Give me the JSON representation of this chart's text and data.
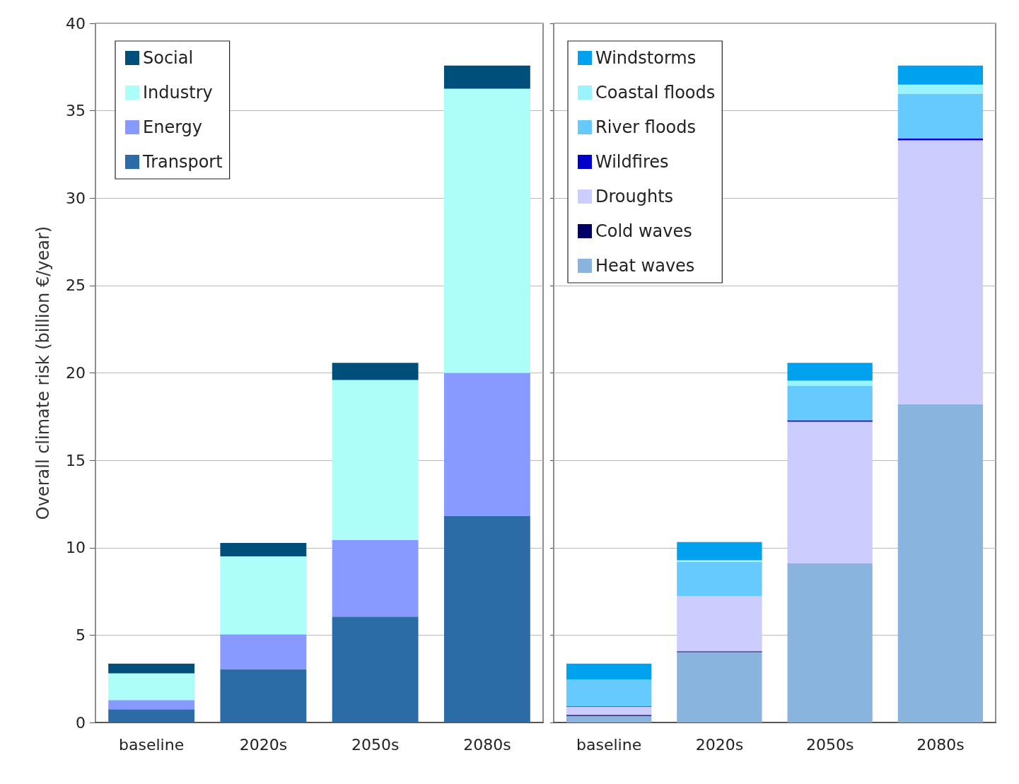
{
  "chart_data": [
    {
      "type": "bar",
      "stacked": true,
      "ylabel": "Overall climate risk (billion €/year)",
      "categories": [
        "baseline",
        "2020s",
        "2050s",
        "2080s"
      ],
      "ylim": [
        0,
        40
      ],
      "yticks": [
        0,
        5,
        10,
        15,
        20,
        25,
        30,
        35,
        40
      ],
      "grid": "y",
      "legend": "top left",
      "series": [
        {
          "name": "Transport",
          "color": "#2c6ca6",
          "values": [
            0.76,
            3.05,
            6.06,
            11.83
          ]
        },
        {
          "name": "Energy",
          "color": "#8899ff",
          "values": [
            0.52,
            2.0,
            4.37,
            8.17
          ]
        },
        {
          "name": "Industry",
          "color": "#adfdf8",
          "values": [
            1.53,
            4.45,
            9.17,
            16.26
          ]
        },
        {
          "name": "Social",
          "color": "#004f7a",
          "values": [
            0.56,
            0.77,
            0.98,
            1.32
          ]
        }
      ]
    },
    {
      "type": "bar",
      "stacked": true,
      "categories": [
        "baseline",
        "2020s",
        "2050s",
        "2080s"
      ],
      "ylim": [
        0,
        40
      ],
      "yticks": [
        0,
        5,
        10,
        15,
        20,
        25,
        30,
        35,
        40
      ],
      "grid": "y",
      "legend": "top left",
      "tick_labels": "x",
      "series": [
        {
          "name": "Heat waves",
          "color": "#88b4de",
          "values": [
            0.37,
            4.02,
            9.1,
            18.21
          ]
        },
        {
          "name": "Cold waves",
          "color": "#000066",
          "values": [
            0.06,
            0.05,
            0,
            0
          ]
        },
        {
          "name": "Droughts",
          "color": "#ccccff",
          "values": [
            0.46,
            3.16,
            8.11,
            15.1
          ]
        },
        {
          "name": "Wildfires",
          "color": "#0000cc",
          "values": [
            0.03,
            null,
            0.08,
            0.1
          ]
        },
        {
          "name": "River floods",
          "color": "#66caff",
          "values": [
            1.54,
            1.97,
            1.98,
            2.57
          ]
        },
        {
          "name": "Coastal floods",
          "color": "#99f4ff",
          "values": [
            0,
            0.08,
            0.29,
            0.51
          ]
        },
        {
          "name": "Windstorms",
          "color": "#00a2f0",
          "values": [
            0.91,
            1.04,
            1.02,
            1.09
          ]
        }
      ]
    }
  ]
}
